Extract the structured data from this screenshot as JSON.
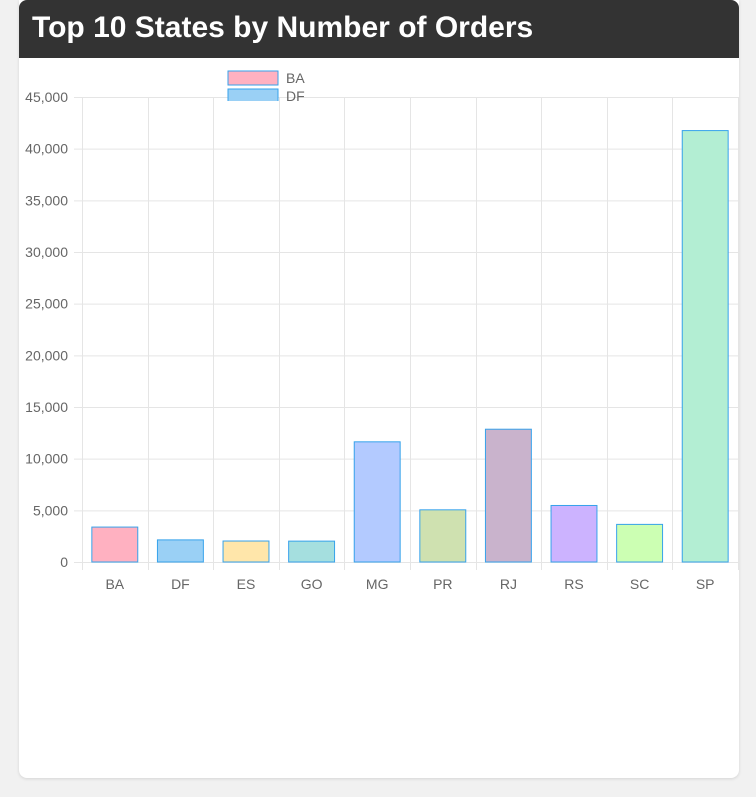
{
  "page": {
    "title": "Top 10 States by Number of Orders"
  },
  "chart_data": {
    "type": "bar",
    "title": "Top 10 States by Number of Orders",
    "xlabel": "",
    "ylabel": "",
    "categories": [
      "BA",
      "DF",
      "ES",
      "GO",
      "MG",
      "PR",
      "RJ",
      "RS",
      "SC",
      "SP"
    ],
    "values": [
      3380,
      2140,
      2030,
      2020,
      11630,
      5050,
      12850,
      5470,
      3640,
      41750
    ],
    "y_ticks": [
      "0",
      "5,000",
      "10,000",
      "15,000",
      "20,000",
      "25,000",
      "30,000",
      "35,000",
      "40,000",
      "45,000"
    ],
    "ylim": [
      0,
      45000
    ],
    "y_tick_step": 5000,
    "grid": true,
    "legend": {
      "placement": "top",
      "entries": [
        "BA",
        "DF"
      ]
    },
    "colors": {
      "fills": [
        "#ffb1c1",
        "#9ad0f5",
        "#ffe6aa",
        "#a5dfdf",
        "#b3caff",
        "#cfe1b0",
        "#c9b3cc",
        "#ccb3ff",
        "#ccffb3",
        "#b3eed3"
      ],
      "border": "#36a2eb",
      "grid": "#e5e5e5",
      "axis_text": "#666666"
    }
  }
}
